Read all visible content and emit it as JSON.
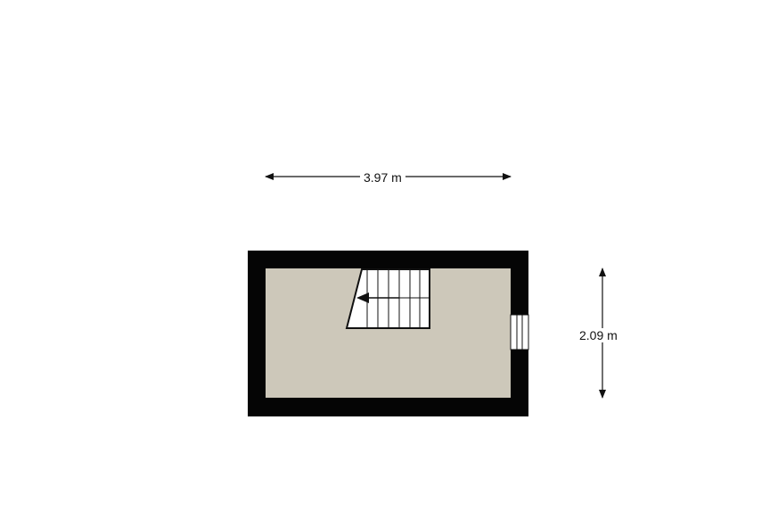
{
  "dimensions": {
    "width_label": "3.97 m",
    "height_label": "2.09 m"
  },
  "colors": {
    "wall": "#050505",
    "floor": "#cdc8ba",
    "stair_fill": "#ffffff",
    "line": "#111111"
  },
  "elements": {
    "stairs": "staircase-with-direction-arrow",
    "window": "window-right-wall"
  }
}
